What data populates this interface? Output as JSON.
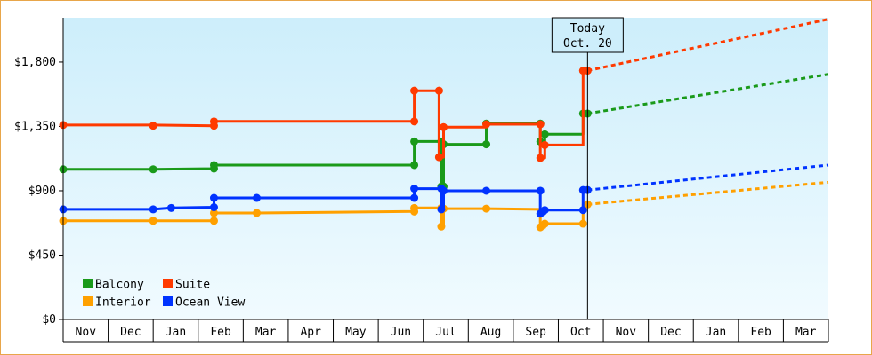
{
  "chart_data": {
    "type": "line",
    "today": {
      "label": "Today",
      "date_label": "Oct. 20",
      "x": 11.65
    },
    "y_axis": {
      "ticks": [
        0,
        450,
        900,
        1350,
        1800
      ],
      "tick_labels": [
        "$0",
        "$450",
        "$900",
        "$1,350",
        "$1,800"
      ],
      "ylim": [
        0,
        2110
      ]
    },
    "x_axis": {
      "months": [
        "Nov",
        "Dec",
        "Jan",
        "Feb",
        "Mar",
        "Apr",
        "May",
        "Jun",
        "Jul",
        "Aug",
        "Sep",
        "Oct",
        "Nov",
        "Dec",
        "Jan",
        "Feb",
        "Mar"
      ],
      "xlim": [
        0,
        17
      ]
    },
    "colors": {
      "Balcony": "#1a9a1a",
      "Suite": "#ff3a00",
      "Interior": "#ffa000",
      "Ocean View": "#0033ff"
    },
    "legend": [
      "Balcony",
      "Suite",
      "Interior",
      "Ocean View"
    ],
    "series": [
      {
        "name": "Balcony",
        "points": [
          [
            0,
            1050
          ],
          [
            2,
            1050
          ],
          [
            3.35,
            1055
          ],
          [
            3.35,
            1080
          ],
          [
            7.8,
            1080
          ],
          [
            7.8,
            1245
          ],
          [
            8.4,
            1245
          ],
          [
            8.4,
            930
          ],
          [
            8.45,
            930
          ],
          [
            8.45,
            1225
          ],
          [
            9.4,
            1225
          ],
          [
            9.4,
            1370
          ],
          [
            10.6,
            1370
          ],
          [
            10.6,
            1245
          ],
          [
            10.7,
            1245
          ],
          [
            10.7,
            1295
          ],
          [
            11.55,
            1295
          ],
          [
            11.55,
            1440
          ],
          [
            11.65,
            1440
          ]
        ],
        "markers": [
          [
            0,
            1050
          ],
          [
            2,
            1050
          ],
          [
            3.35,
            1055
          ],
          [
            3.35,
            1080
          ],
          [
            7.8,
            1080
          ],
          [
            7.8,
            1245
          ],
          [
            8.4,
            1245
          ],
          [
            8.4,
            930
          ],
          [
            8.45,
            930
          ],
          [
            8.45,
            1225
          ],
          [
            9.4,
            1225
          ],
          [
            9.4,
            1370
          ],
          [
            10.6,
            1370
          ],
          [
            10.6,
            1245
          ],
          [
            10.7,
            1295
          ],
          [
            11.55,
            1440
          ],
          [
            11.65,
            1440
          ]
        ],
        "forecast": [
          [
            11.65,
            1440
          ],
          [
            17,
            1715
          ]
        ]
      },
      {
        "name": "Suite",
        "points": [
          [
            0,
            1360
          ],
          [
            2,
            1360
          ],
          [
            3.35,
            1355
          ],
          [
            3.35,
            1385
          ],
          [
            7.8,
            1385
          ],
          [
            7.8,
            1600
          ],
          [
            8.35,
            1600
          ],
          [
            8.35,
            1135
          ],
          [
            8.45,
            1135
          ],
          [
            8.45,
            1345
          ],
          [
            9.4,
            1345
          ],
          [
            9.4,
            1365
          ],
          [
            10.6,
            1365
          ],
          [
            10.6,
            1130
          ],
          [
            10.7,
            1130
          ],
          [
            10.7,
            1220
          ],
          [
            11.55,
            1220
          ],
          [
            11.55,
            1740
          ],
          [
            11.65,
            1740
          ]
        ],
        "markers": [
          [
            0,
            1360
          ],
          [
            2,
            1355
          ],
          [
            3.35,
            1355
          ],
          [
            3.35,
            1385
          ],
          [
            7.8,
            1385
          ],
          [
            7.8,
            1600
          ],
          [
            8.35,
            1600
          ],
          [
            8.35,
            1135
          ],
          [
            8.45,
            1345
          ],
          [
            9.4,
            1365
          ],
          [
            10.6,
            1365
          ],
          [
            10.6,
            1130
          ],
          [
            10.7,
            1220
          ],
          [
            11.55,
            1740
          ],
          [
            11.65,
            1740
          ]
        ],
        "forecast": [
          [
            11.65,
            1740
          ],
          [
            17,
            2100
          ]
        ]
      },
      {
        "name": "Interior",
        "points": [
          [
            0,
            690
          ],
          [
            2,
            690
          ],
          [
            3.35,
            690
          ],
          [
            3.35,
            745
          ],
          [
            4.3,
            745
          ],
          [
            7.8,
            755
          ],
          [
            7.8,
            780
          ],
          [
            8.4,
            780
          ],
          [
            8.4,
            650
          ],
          [
            8.45,
            650
          ],
          [
            8.45,
            775
          ],
          [
            9.4,
            775
          ],
          [
            10.6,
            770
          ],
          [
            10.6,
            645
          ],
          [
            10.7,
            645
          ],
          [
            10.7,
            670
          ],
          [
            11.55,
            670
          ],
          [
            11.55,
            805
          ],
          [
            11.65,
            805
          ]
        ],
        "markers": [
          [
            0,
            690
          ],
          [
            2,
            690
          ],
          [
            3.35,
            690
          ],
          [
            3.35,
            745
          ],
          [
            4.3,
            745
          ],
          [
            7.8,
            755
          ],
          [
            7.8,
            780
          ],
          [
            8.4,
            780
          ],
          [
            8.4,
            650
          ],
          [
            8.45,
            775
          ],
          [
            9.4,
            775
          ],
          [
            10.6,
            645
          ],
          [
            10.7,
            670
          ],
          [
            11.55,
            670
          ],
          [
            11.65,
            805
          ]
        ],
        "forecast": [
          [
            11.65,
            805
          ],
          [
            17,
            960
          ]
        ]
      },
      {
        "name": "Ocean View",
        "points": [
          [
            0,
            770
          ],
          [
            2,
            770
          ],
          [
            2.4,
            780
          ],
          [
            3.35,
            785
          ],
          [
            3.35,
            850
          ],
          [
            4.3,
            850
          ],
          [
            7.8,
            850
          ],
          [
            7.8,
            915
          ],
          [
            8.4,
            915
          ],
          [
            8.4,
            770
          ],
          [
            8.45,
            770
          ],
          [
            8.45,
            900
          ],
          [
            9.4,
            900
          ],
          [
            10.6,
            900
          ],
          [
            10.6,
            740
          ],
          [
            10.7,
            740
          ],
          [
            10.7,
            765
          ],
          [
            11.55,
            765
          ],
          [
            11.55,
            905
          ],
          [
            11.65,
            905
          ]
        ],
        "markers": [
          [
            0,
            770
          ],
          [
            2,
            770
          ],
          [
            2.4,
            780
          ],
          [
            3.35,
            785
          ],
          [
            3.35,
            850
          ],
          [
            4.3,
            850
          ],
          [
            7.8,
            850
          ],
          [
            7.8,
            915
          ],
          [
            8.4,
            915
          ],
          [
            8.4,
            770
          ],
          [
            8.45,
            900
          ],
          [
            9.4,
            900
          ],
          [
            10.6,
            900
          ],
          [
            10.6,
            740
          ],
          [
            10.7,
            765
          ],
          [
            11.55,
            765
          ],
          [
            11.55,
            905
          ],
          [
            11.65,
            905
          ]
        ],
        "forecast": [
          [
            11.65,
            905
          ],
          [
            17,
            1080
          ]
        ]
      }
    ]
  }
}
